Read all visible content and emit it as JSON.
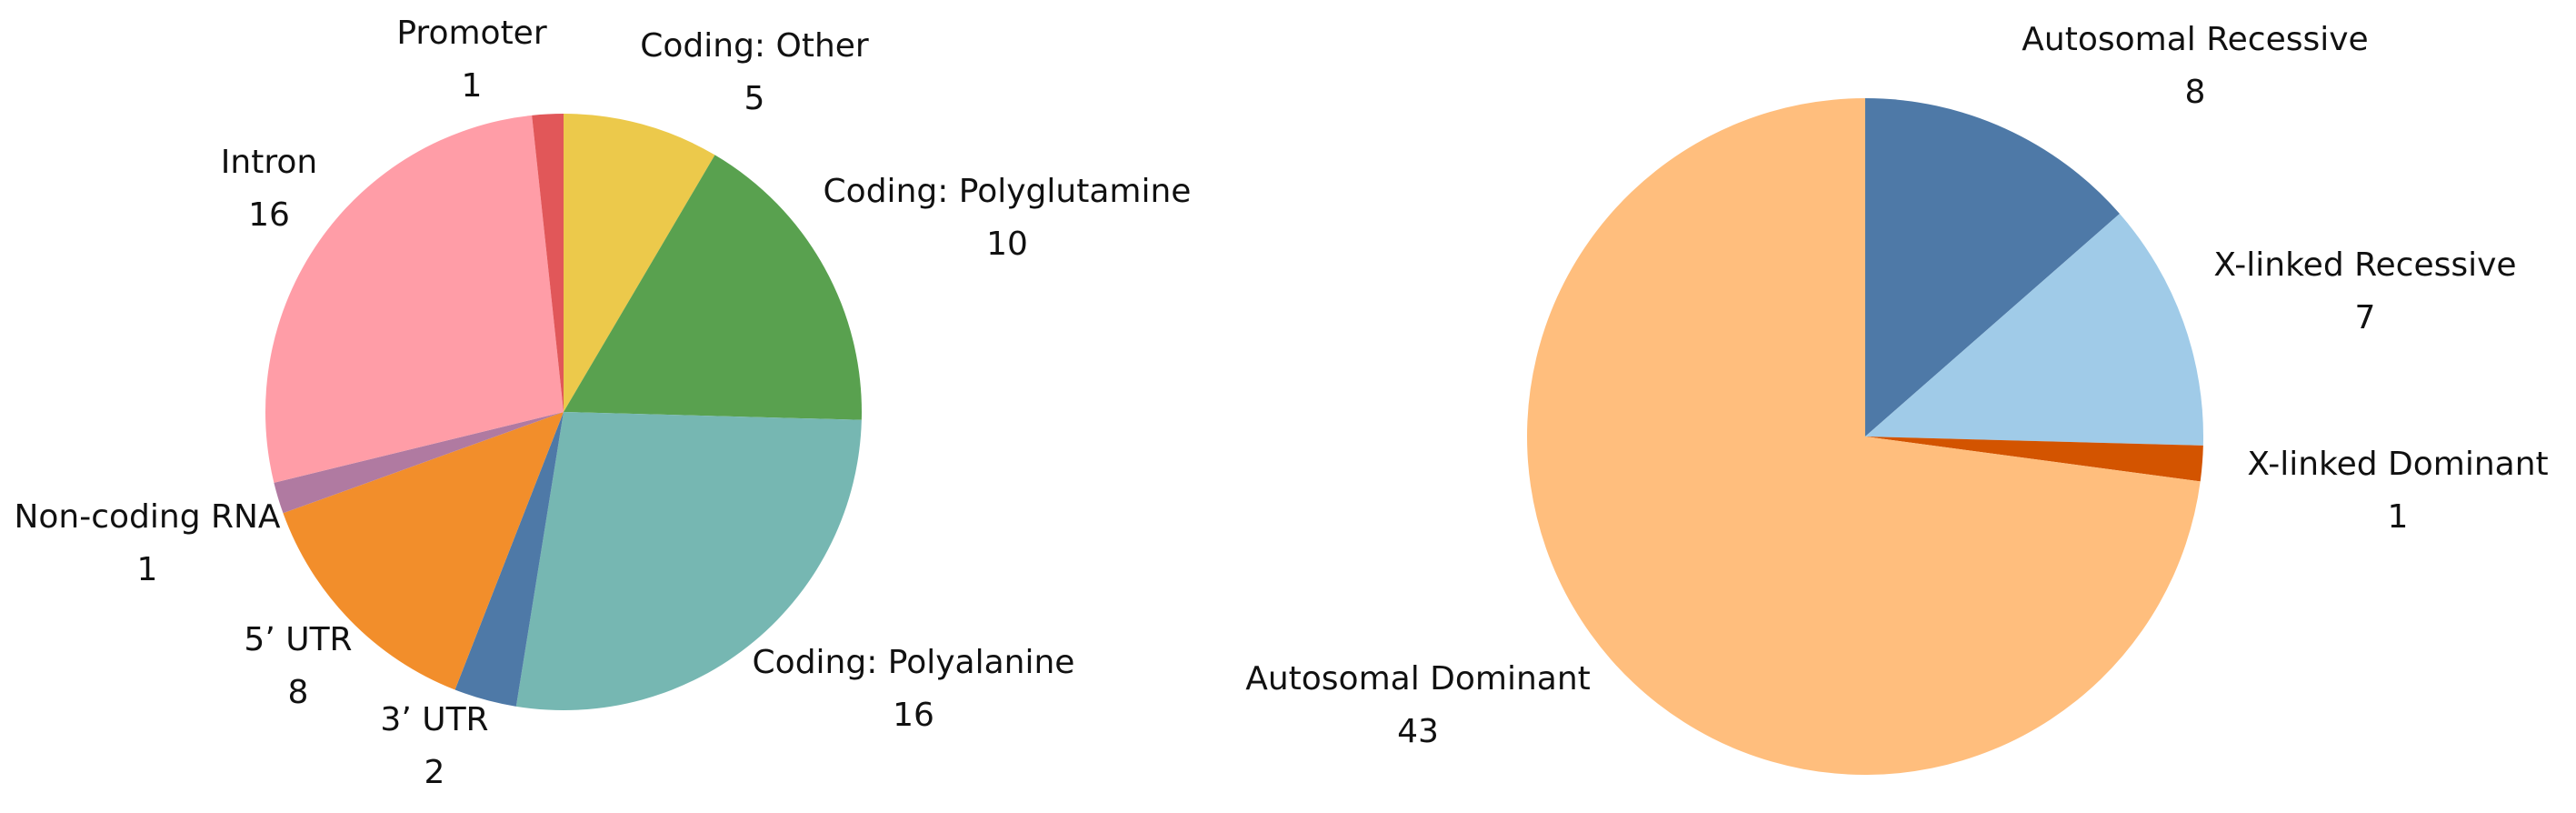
{
  "chart_data": [
    {
      "type": "pie",
      "start_angle_deg": 0,
      "direction": "clockwise",
      "slices": [
        {
          "label": "Coding: Other",
          "value": 5,
          "color": "#ECC94B"
        },
        {
          "label": "Coding: Polyglutamine",
          "value": 10,
          "color": "#59A14F"
        },
        {
          "label": "Coding: Polyalanine",
          "value": 16,
          "color": "#76B7B2"
        },
        {
          "label": "3’ UTR",
          "value": 2,
          "color": "#4E79A7"
        },
        {
          "label": "5’ UTR",
          "value": 8,
          "color": "#F28E2B"
        },
        {
          "label": "Non-coding RNA",
          "value": 1,
          "color": "#B07AA1"
        },
        {
          "label": "Intron",
          "value": 16,
          "color": "#FF9DA7"
        },
        {
          "label": "Promoter",
          "value": 1,
          "color": "#E15759"
        }
      ]
    },
    {
      "type": "pie",
      "start_angle_deg": 0,
      "direction": "clockwise",
      "slices": [
        {
          "label": "Autosomal Recessive",
          "value": 8,
          "color": "#4E79A7"
        },
        {
          "label": "X-linked Recessive",
          "value": 7,
          "color": "#A0CBE8"
        },
        {
          "label": "X-linked Dominant",
          "value": 1,
          "color": "#D35400"
        },
        {
          "label": "Autosomal Dominant",
          "value": 43,
          "color": "#FFBE7D"
        }
      ]
    }
  ]
}
